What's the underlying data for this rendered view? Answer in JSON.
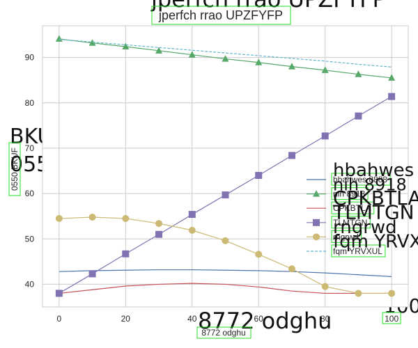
{
  "chart_data": {
    "type": "line",
    "title": "jperfch rrao UPZFYFP",
    "xlabel": "8772 odghu",
    "ylabel": "0550 BKUF",
    "x": [
      0,
      10,
      20,
      30,
      40,
      50,
      60,
      70,
      80,
      90,
      100
    ],
    "xlim": [
      -5,
      105
    ],
    "ylim": [
      35,
      97
    ],
    "xticks": [
      "0",
      "20",
      "40",
      "60",
      "80",
      "100"
    ],
    "yticks": [
      "40",
      "50",
      "60",
      "70",
      "80",
      "90"
    ],
    "grid": true,
    "legend_position": "center-right",
    "series": [
      {
        "name": "hbahwes 8888",
        "marker": "none",
        "style": "solid",
        "color": "#4c72b0",
        "values": [
          42.8,
          43.0,
          43.1,
          43.2,
          43.2,
          43.1,
          43.0,
          42.8,
          42.5,
          42.1,
          41.7
        ]
      },
      {
        "name": "nih 8918",
        "marker": "triangle",
        "style": "solid",
        "color": "#55a868",
        "values": [
          94.1,
          93.2,
          92.4,
          91.5,
          90.6,
          89.7,
          88.9,
          88.0,
          87.2,
          86.3,
          85.5
        ]
      },
      {
        "name": "CPKBTLA",
        "marker": "none",
        "style": "solid",
        "color": "#c44e52",
        "values": [
          38.0,
          38.8,
          39.6,
          40.0,
          40.2,
          40.0,
          39.4,
          38.5,
          38.0,
          38.0,
          38.0
        ]
      },
      {
        "name": "TLMTGN",
        "marker": "square",
        "style": "solid",
        "color": "#8172b2",
        "values": [
          38.0,
          42.3,
          46.7,
          51.0,
          55.4,
          59.7,
          64.0,
          68.4,
          72.7,
          77.1,
          81.4
        ]
      },
      {
        "name": "rngrwd",
        "marker": "circle",
        "style": "solid",
        "color": "#ccb974",
        "values": [
          54.5,
          54.8,
          54.5,
          53.4,
          51.9,
          49.6,
          46.6,
          43.4,
          39.5,
          38.0,
          38.0
        ]
      },
      {
        "name": "fqm YRVXUL",
        "marker": "none",
        "style": "dashed",
        "color": "#64b5cd",
        "values": [
          94.0,
          93.4,
          92.8,
          92.2,
          91.6,
          91.0,
          90.4,
          89.8,
          89.2,
          88.5,
          87.9
        ]
      }
    ]
  }
}
